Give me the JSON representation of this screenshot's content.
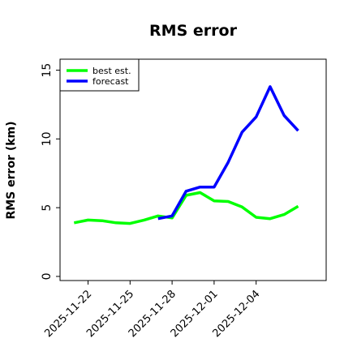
{
  "chart_data": {
    "type": "line",
    "title": "RMS error",
    "xlabel": "",
    "ylabel": "RMS error (km)",
    "x_tick_labels": [
      "2025-11-22",
      "2025-11-25",
      "2025-11-28",
      "2025-12-01",
      "2025-12-04"
    ],
    "y_ticks": [
      0,
      5,
      10,
      15
    ],
    "ylim": [
      -0.3,
      15.8
    ],
    "xlim": [
      "2025-11-20",
      "2025-12-09"
    ],
    "grid": false,
    "legend": "top-left",
    "series": [
      {
        "name": "best est.",
        "color": "#00ff00",
        "x": [
          "2025-11-21",
          "2025-11-22",
          "2025-11-23",
          "2025-11-24",
          "2025-11-25",
          "2025-11-26",
          "2025-11-27",
          "2025-11-28",
          "2025-11-29",
          "2025-11-30",
          "2025-12-01",
          "2025-12-02",
          "2025-12-03",
          "2025-12-04",
          "2025-12-05",
          "2025-12-06",
          "2025-12-07"
        ],
        "values": [
          3.9,
          4.1,
          4.05,
          3.9,
          3.85,
          4.1,
          4.4,
          4.25,
          5.9,
          6.1,
          5.5,
          5.45,
          5.05,
          4.3,
          4.2,
          4.5,
          5.1
        ]
      },
      {
        "name": "forecast",
        "color": "#0000ff",
        "x": [
          "2025-11-27",
          "2025-11-28",
          "2025-11-29",
          "2025-11-30",
          "2025-12-01",
          "2025-12-02",
          "2025-12-03",
          "2025-12-04",
          "2025-12-05",
          "2025-12-06",
          "2025-12-07"
        ],
        "values": [
          4.2,
          4.4,
          6.2,
          6.5,
          6.5,
          8.3,
          10.5,
          11.6,
          13.8,
          11.7,
          10.6
        ]
      }
    ]
  }
}
